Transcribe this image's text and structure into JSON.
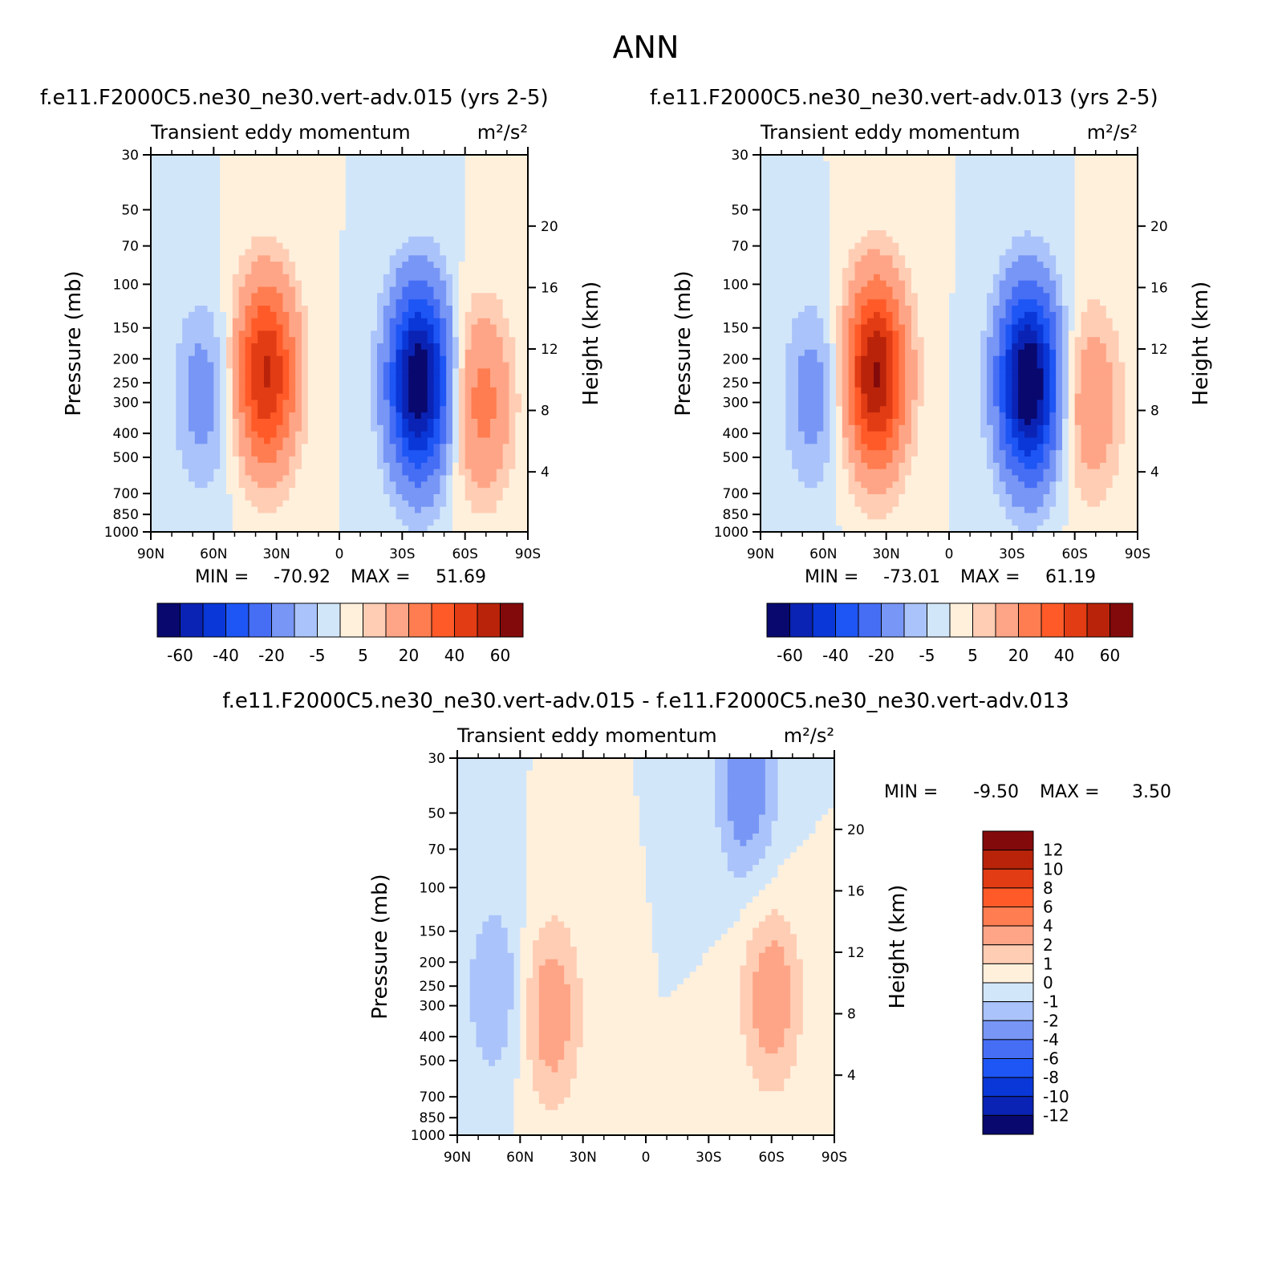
{
  "figure": {
    "title": "ANN"
  },
  "scales": {
    "lat_ticks": [
      "90N",
      "60N",
      "30N",
      "0",
      "30S",
      "60S",
      "90S"
    ],
    "pressure_ticks": [
      "30",
      "50",
      "70",
      "100",
      "150",
      "200",
      "250",
      "300",
      "400",
      "500",
      "700",
      "850",
      "1000"
    ],
    "height_ticks": [
      "20",
      "16",
      "12",
      "8",
      "4"
    ],
    "left_label": "Pressure (mb)",
    "right_label": "Height (km)",
    "subtitle_left": "Transient eddy momentum",
    "subtitle_units": "m²/s²"
  },
  "palettes": {
    "main": [
      "#08086e",
      "#0a23b4",
      "#0a37d7",
      "#1e55f5",
      "#466ef5",
      "#7896f5",
      "#aac3fa",
      "#d2e6fa",
      "#fff0dc",
      "#ffcdb4",
      "#ffa587",
      "#ff7d50",
      "#ff5a28",
      "#e13c14",
      "#b9230a",
      "#820a0a"
    ],
    "main_labels": [
      "-60",
      "-40",
      "-20",
      "-5",
      "5",
      "20",
      "40",
      "60"
    ],
    "diff": [
      "#08086e",
      "#0a23b4",
      "#0a37d7",
      "#1e55f5",
      "#466ef5",
      "#7896f5",
      "#aac3fa",
      "#d2e6fa",
      "#fff0dc",
      "#ffcdb4",
      "#ffa587",
      "#ff7d50",
      "#ff5a28",
      "#e13c14",
      "#b9230a",
      "#820a0a"
    ],
    "diff_labels": [
      "12",
      "10",
      "8",
      "6",
      "4",
      "2",
      "1",
      "0",
      "-1",
      "-2",
      "-4",
      "-6",
      "-8",
      "-10",
      "-12"
    ]
  },
  "chart_data": [
    {
      "type": "heatmap",
      "title": "f.e11.F2000C5.ne30_ne30.vert-adv.015 (yrs 2-5)",
      "subtitle": "Transient eddy momentum",
      "units": "m²/s²",
      "xlabel": "",
      "ylabel": "Pressure (mb)",
      "y2label": "Height (km)",
      "x_range": [
        "90N",
        "90S"
      ],
      "y_range": [
        1000,
        30
      ],
      "stats": {
        "min_label": "MIN =",
        "min": "-70.92",
        "max_label": "MAX =",
        "max": "51.69"
      },
      "contour_levels": [
        -70,
        -60,
        -50,
        -40,
        -30,
        -20,
        -10,
        -5,
        0,
        5,
        10,
        20,
        30,
        40,
        50,
        60,
        70
      ],
      "features": [
        {
          "lat": 35,
          "p": 230,
          "value": 51.69
        },
        {
          "lat": -38,
          "p": 250,
          "value": -70.92
        },
        {
          "lat": -68,
          "p": 300,
          "value": 24
        },
        {
          "lat": 65,
          "p": 280,
          "value": -14
        }
      ]
    },
    {
      "type": "heatmap",
      "title": "f.e11.F2000C5.ne30_ne30.vert-adv.013 (yrs 2-5)",
      "subtitle": "Transient eddy momentum",
      "units": "m²/s²",
      "xlabel": "",
      "ylabel": "Pressure (mb)",
      "y2label": "Height (km)",
      "x_range": [
        "90N",
        "90S"
      ],
      "y_range": [
        1000,
        30
      ],
      "stats": {
        "min_label": "MIN =",
        "min": "-73.01",
        "max_label": "MAX =",
        "max": "61.19"
      },
      "contour_levels": [
        -70,
        -60,
        -50,
        -40,
        -30,
        -20,
        -10,
        -5,
        0,
        5,
        10,
        20,
        30,
        40,
        50,
        60,
        70
      ],
      "features": [
        {
          "lat": 35,
          "p": 230,
          "value": 61.19
        },
        {
          "lat": -38,
          "p": 250,
          "value": -73.01
        },
        {
          "lat": -68,
          "p": 300,
          "value": 18
        },
        {
          "lat": 65,
          "p": 280,
          "value": -14
        }
      ]
    },
    {
      "type": "heatmap",
      "title": "f.e11.F2000C5.ne30_ne30.vert-adv.015 - f.e11.F2000C5.ne30_ne30.vert-adv.013",
      "subtitle": "Transient eddy momentum",
      "units": "m²/s²",
      "xlabel": "",
      "ylabel": "Pressure (mb)",
      "y2label": "Height (km)",
      "x_range": [
        "90N",
        "90S"
      ],
      "y_range": [
        1000,
        30
      ],
      "stats": {
        "min_label": "MIN =",
        "min": "-9.50",
        "max_label": "MAX =",
        "max": "3.50"
      },
      "contour_levels": [
        -12,
        -10,
        -8,
        -6,
        -4,
        -2,
        -1,
        0,
        1,
        2,
        4,
        6,
        8,
        10,
        12
      ],
      "features": [
        {
          "lat": 45,
          "p": 320,
          "value": 3
        },
        {
          "lat": -60,
          "p": 280,
          "value": 3
        },
        {
          "lat": -48,
          "p": 40,
          "value": -3
        },
        {
          "lat": 72,
          "p": 260,
          "value": -2
        }
      ]
    }
  ]
}
